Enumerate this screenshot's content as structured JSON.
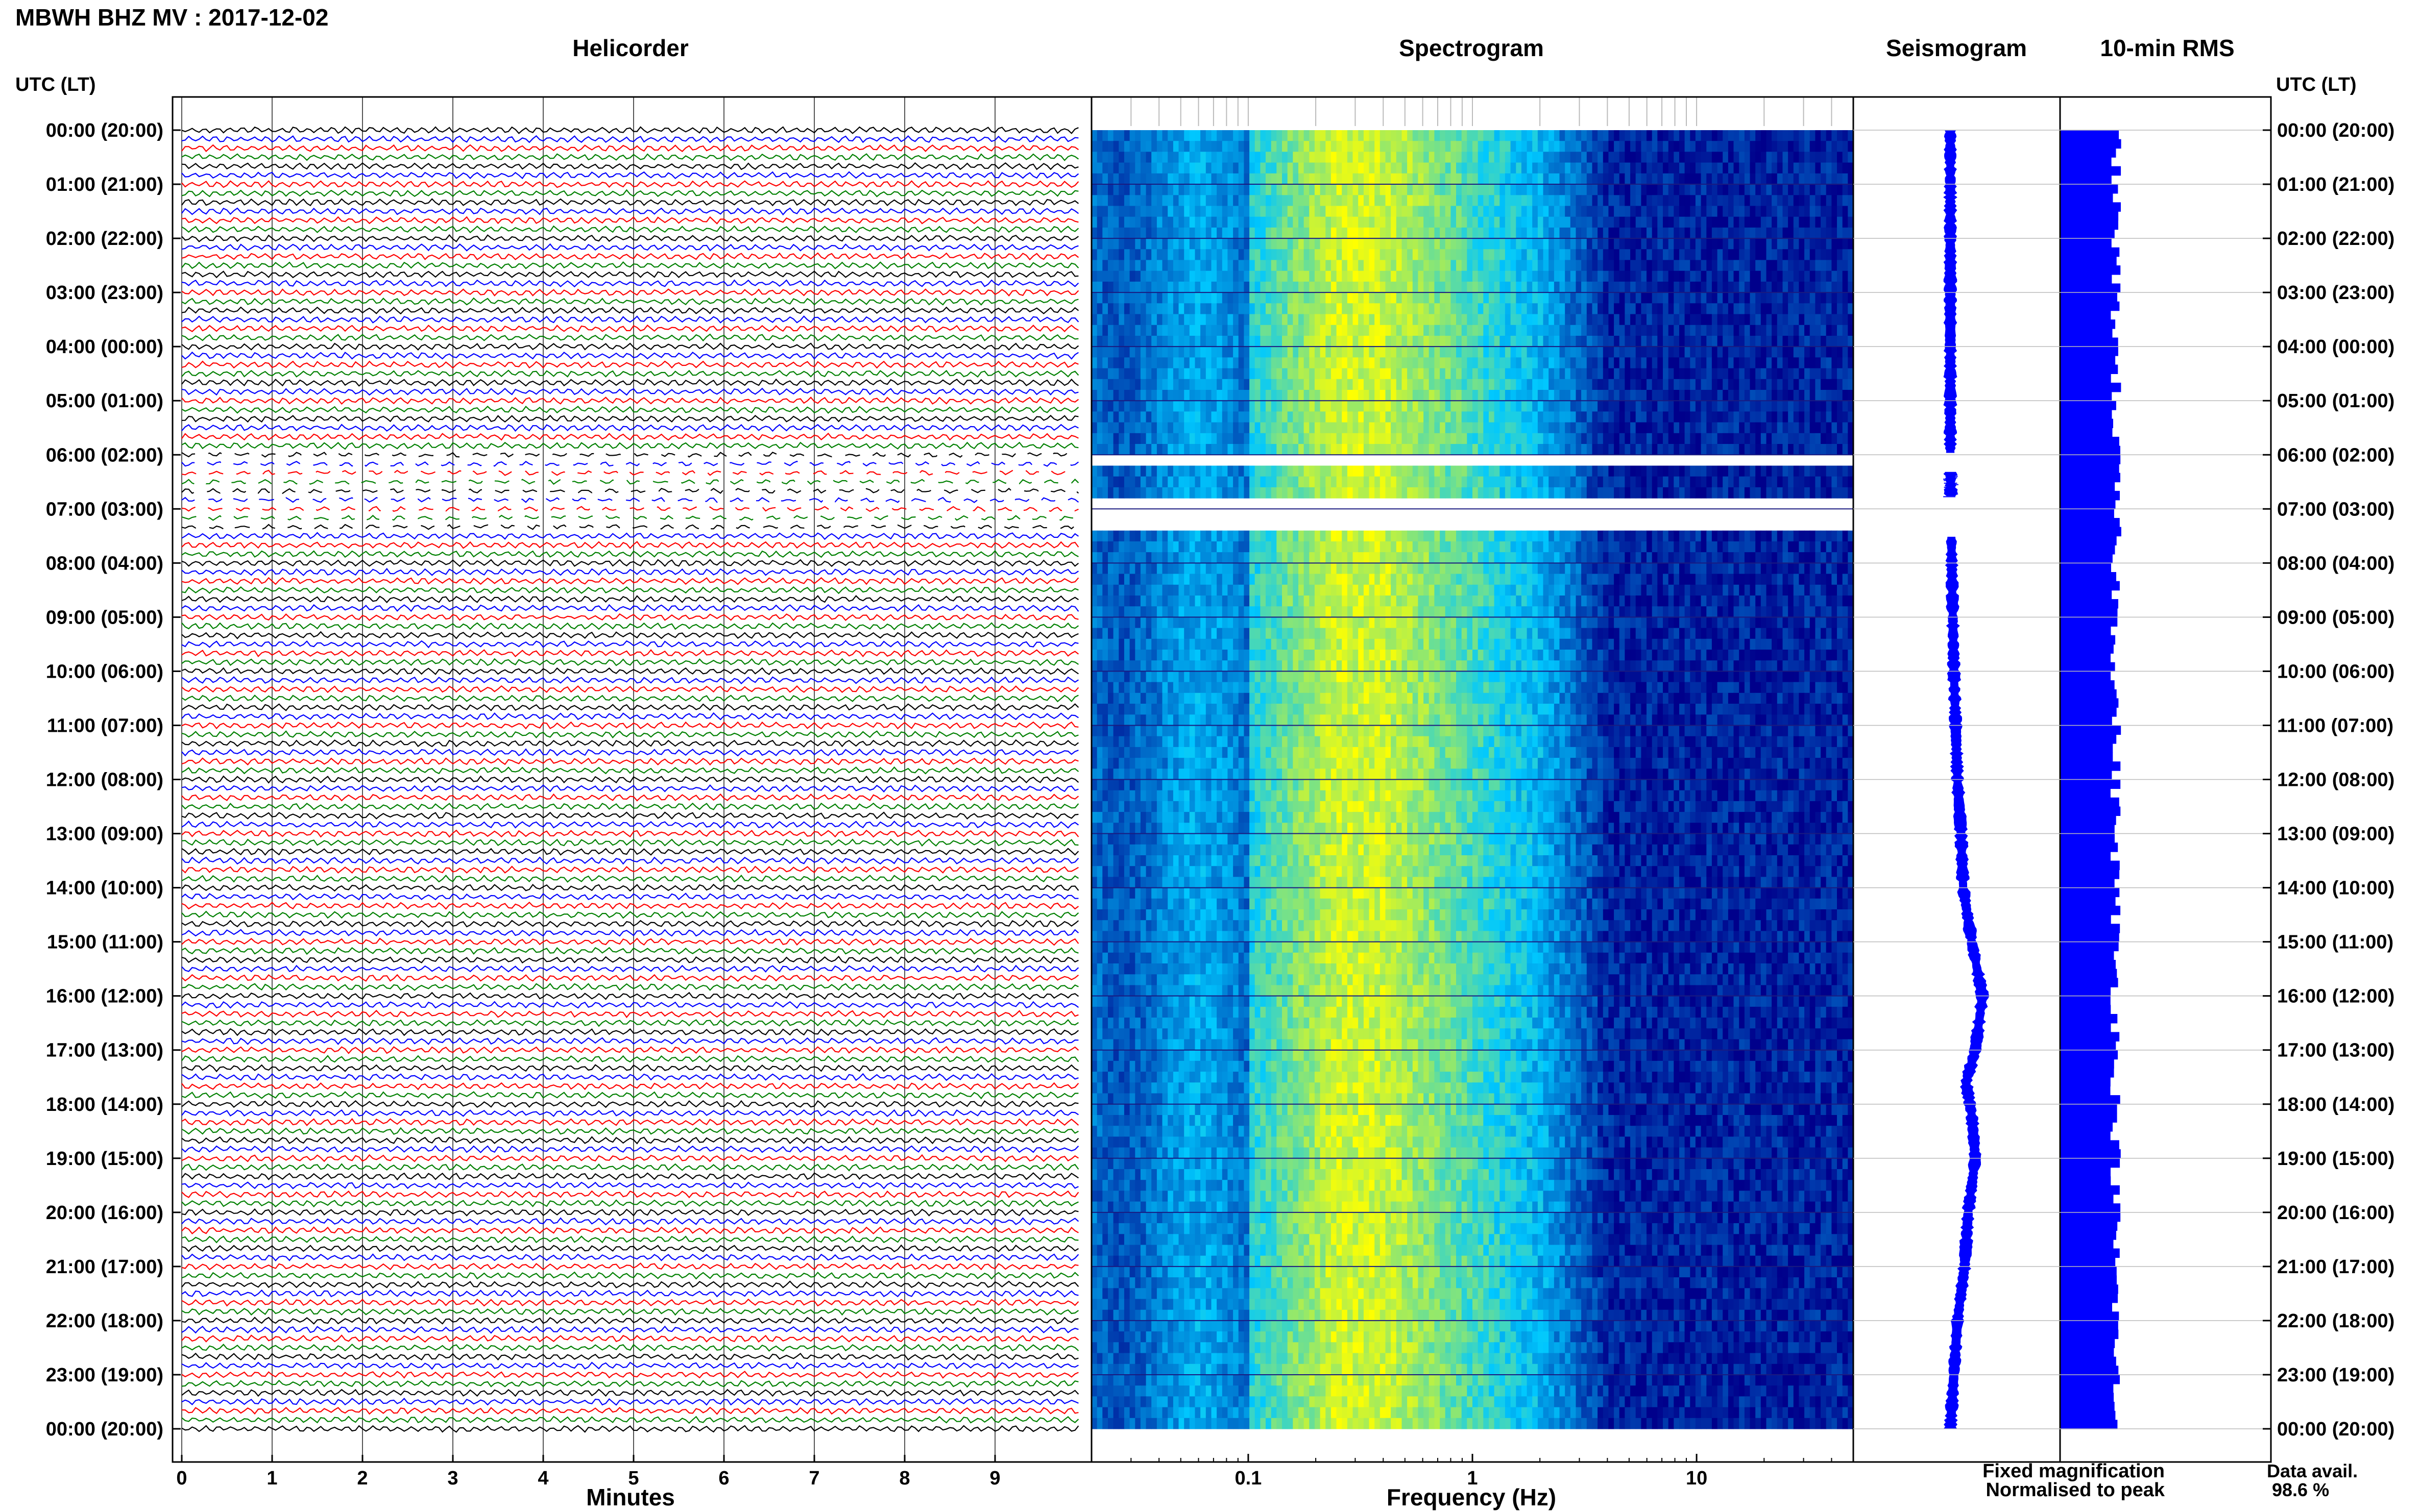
{
  "header": {
    "title": "MBWH BHZ MV : 2017-12-02"
  },
  "panels": {
    "helicorder": "Helicorder",
    "spectrogram": "Spectrogram",
    "seismogram": "Seismogram",
    "rms": "10-min RMS"
  },
  "axes": {
    "utc_lt_left": "UTC (LT)",
    "utc_lt_right": "UTC (LT)",
    "minutes_label": "Minutes",
    "frequency_label": "Frequency (Hz)"
  },
  "legend": {
    "fixed": "Fixed magnification",
    "fixed_color": "#0000ff",
    "normalised": "Normalised to peak",
    "normalised_color": "#ff0000"
  },
  "availability": {
    "label": "Data avail.",
    "value": "98.6 %"
  },
  "colors": {
    "trace_cycle": [
      "#000000",
      "#0000ff",
      "#ff0000",
      "#008000"
    ],
    "spectrogram_low": "#00008b",
    "spectrogram_mid": "#00c8ff",
    "spectrogram_high": "#ffff00",
    "rms": "#0000ff"
  },
  "chart_data": [
    {
      "type": "line",
      "name": "helicorder",
      "xlabel": "Minutes",
      "x_ticks": [
        "0",
        "1",
        "2",
        "3",
        "4",
        "5",
        "6",
        "7",
        "8",
        "9"
      ],
      "xlim": [
        0,
        10
      ],
      "y_ticks": [
        "00:00 (20:00)",
        "01:00 (21:00)",
        "02:00 (22:00)",
        "03:00 (23:00)",
        "04:00 (00:00)",
        "05:00 (01:00)",
        "06:00 (02:00)",
        "07:00 (03:00)",
        "08:00 (04:00)",
        "09:00 (05:00)",
        "10:00 (06:00)",
        "11:00 (07:00)",
        "12:00 (08:00)",
        "13:00 (09:00)",
        "14:00 (10:00)",
        "15:00 (11:00)",
        "16:00 (12:00)",
        "17:00 (13:00)",
        "18:00 (14:00)",
        "19:00 (15:00)",
        "20:00 (16:00)",
        "21:00 (17:00)",
        "22:00 (18:00)",
        "23:00 (19:00)",
        "00:00 (20:00)"
      ],
      "lines_per_hour": 6,
      "gap_hours": [
        6.0,
        7.5
      ]
    },
    {
      "type": "heatmap",
      "name": "spectrogram",
      "xlabel": "Frequency (Hz)",
      "x_scale": "log",
      "xlim": [
        0.02,
        50
      ],
      "x_ticks": [
        "0.1",
        "1",
        "10"
      ],
      "gap_hours": [
        [
          6.0,
          6.3
        ],
        [
          6.8,
          7.5
        ]
      ]
    },
    {
      "type": "line",
      "name": "seismogram",
      "mean_offset": [
        [
          0,
          0
        ],
        [
          2,
          0
        ],
        [
          4,
          0
        ],
        [
          6,
          0
        ],
        [
          8,
          0.02
        ],
        [
          10,
          0.05
        ],
        [
          12,
          0.1
        ],
        [
          13,
          0.15
        ],
        [
          14,
          0.18
        ],
        [
          15,
          0.3
        ],
        [
          16,
          0.45
        ],
        [
          17,
          0.35
        ],
        [
          17.6,
          0.22
        ],
        [
          18.2,
          0.3
        ],
        [
          19,
          0.35
        ],
        [
          20,
          0.25
        ],
        [
          21,
          0.2
        ],
        [
          22,
          0.1
        ],
        [
          23,
          0.05
        ],
        [
          24,
          0
        ]
      ],
      "gap_hours": [
        [
          6.0,
          6.3
        ],
        [
          6.8,
          7.5
        ]
      ]
    },
    {
      "type": "bar",
      "name": "rms",
      "orientation": "horizontal",
      "bin_minutes": 10,
      "level_range": [
        0.82,
        1.0
      ]
    }
  ]
}
